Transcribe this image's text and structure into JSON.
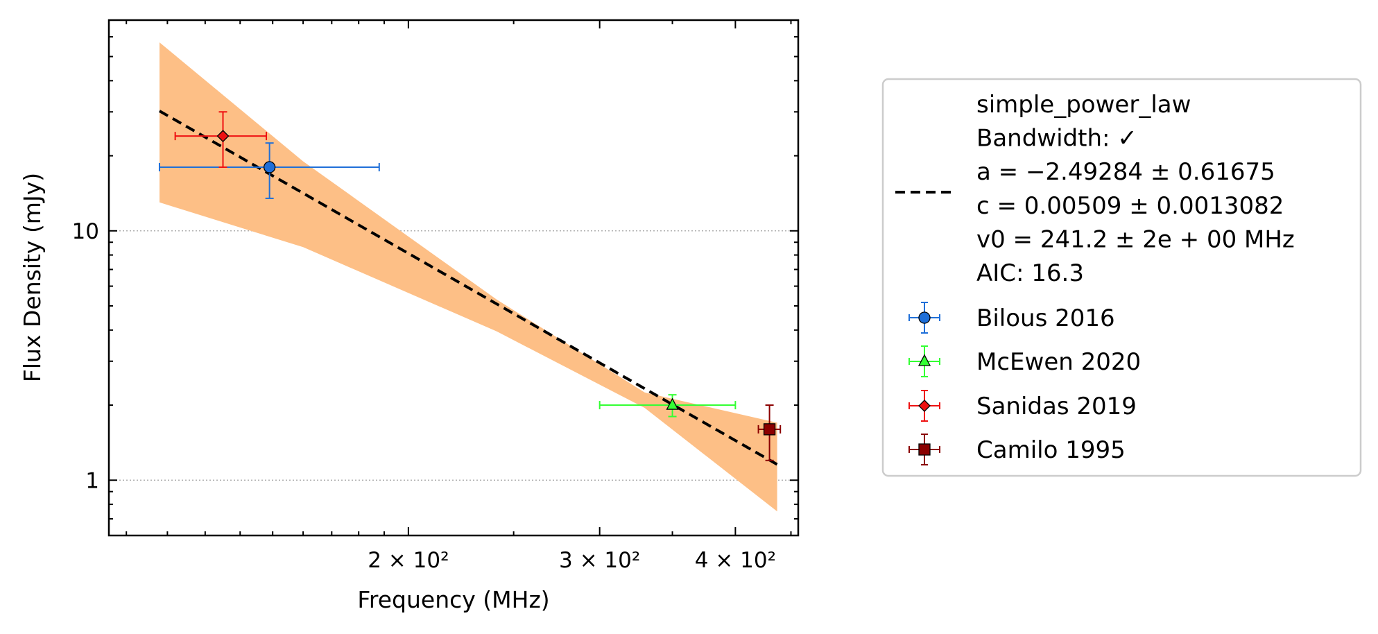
{
  "chart_data": {
    "type": "scatter",
    "xlabel": "Frequency (MHz)",
    "ylabel": "Flux Density (mJy)",
    "xscale": "log",
    "yscale": "log",
    "xlim": [
      106,
      457
    ],
    "ylim": [
      0.6,
      70
    ],
    "x_ticks": [
      {
        "value": 200,
        "label": "2 × 10²"
      },
      {
        "value": 300,
        "label": "3 × 10²"
      },
      {
        "value": 400,
        "label": "4 × 10²"
      }
    ],
    "y_ticks": [
      {
        "value": 1,
        "label": "1"
      },
      {
        "value": 10,
        "label": "10"
      }
    ],
    "grid": "horizontal dotted at major y ticks",
    "legend_position": "outside right",
    "fit": {
      "model": "simple_power_law",
      "legend_lines": [
        "simple_power_law",
        "Bandwidth: ✓",
        "a = −2.49284 ± 0.61675",
        "c = 0.00509 ± 0.0013082",
        "v0 = 241.2 ± 2e + 00 MHz",
        "AIC: 16.3"
      ],
      "a": -2.49284,
      "c": 0.00509,
      "v0": 241.2,
      "line_color": "#000000",
      "band_color": "#fdbf86",
      "x_range": [
        118,
        437
      ],
      "band": [
        {
          "x": 118,
          "lower": 13.0,
          "upper": 57.0
        },
        {
          "x": 160,
          "lower": 8.6,
          "upper": 19.0
        },
        {
          "x": 241.2,
          "lower": 3.95,
          "upper": 5.3
        },
        {
          "x": 330,
          "lower": 1.95,
          "upper": 2.25
        },
        {
          "x": 437,
          "lower": 0.75,
          "upper": 1.7
        }
      ]
    },
    "series": [
      {
        "name": "Bilous 2016",
        "marker": "circle",
        "color": "#1f6fd8",
        "points": [
          {
            "x": 149,
            "y": 18.0,
            "xerr": [
              31,
              39
            ],
            "yerr": [
              4.5,
              4.5
            ]
          }
        ]
      },
      {
        "name": "McEwen 2020",
        "marker": "triangle",
        "color": "#33ff33",
        "points": [
          {
            "x": 350,
            "y": 2.0,
            "xerr": [
              50,
              50
            ],
            "yerr": [
              0.2,
              0.2
            ]
          }
        ]
      },
      {
        "name": "Sanidas 2019",
        "marker": "diamond",
        "color": "#ee1111",
        "points": [
          {
            "x": 135,
            "y": 24.0,
            "xerr": [
              13,
              13
            ],
            "yerr": [
              6,
              6
            ]
          }
        ]
      },
      {
        "name": "Camilo 1995",
        "marker": "square",
        "color": "#8b0000",
        "points": [
          {
            "x": 430,
            "y": 1.6,
            "xerr": [
              10,
              10
            ],
            "yerr": [
              0.4,
              0.4
            ]
          }
        ]
      }
    ]
  }
}
